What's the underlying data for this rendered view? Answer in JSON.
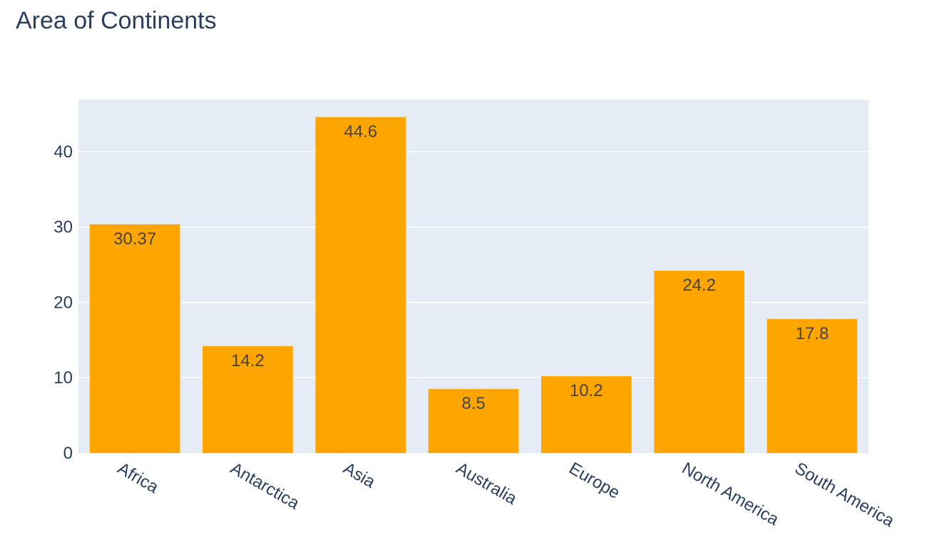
{
  "chart_data": {
    "type": "bar",
    "title": "Area of Continents",
    "xlabel": "",
    "ylabel": "",
    "categories": [
      "Africa",
      "Antarctica",
      "Asia",
      "Australia",
      "Europe",
      "North America",
      "South America"
    ],
    "values": [
      30.37,
      14.2,
      44.6,
      8.5,
      10.2,
      24.2,
      17.8
    ],
    "data_labels": [
      "30.37",
      "14.2",
      "44.6",
      "8.5",
      "10.2",
      "24.2",
      "17.8"
    ],
    "ylim": [
      0,
      46.9
    ],
    "y_ticks": [
      0,
      10,
      20,
      30,
      40
    ],
    "grid": true,
    "legend": "none",
    "colors": {
      "bar": "#ffa500",
      "plot_background": "#e5ecf6",
      "gridline": "#ffffff",
      "text": "#2a3f5f",
      "data_label": "#444444"
    }
  }
}
